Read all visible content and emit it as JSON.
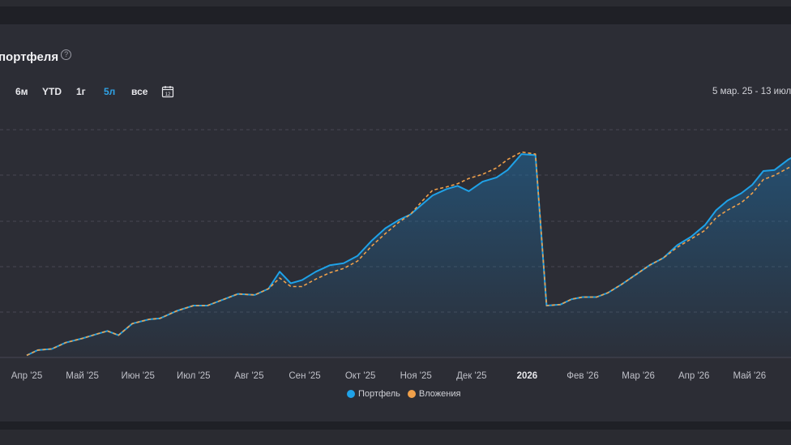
{
  "header": {
    "title": "портфеля",
    "help_icon": "question-circle-icon"
  },
  "periods": [
    {
      "label": "6м",
      "active": false
    },
    {
      "label": "YTD",
      "active": false
    },
    {
      "label": "1г",
      "active": false
    },
    {
      "label": "5л",
      "active": true
    },
    {
      "label": "все",
      "active": false
    }
  ],
  "calendar": {
    "icon": "calendar-icon",
    "day": "12"
  },
  "date_range": "5 мар. 25 - 13 июл",
  "chart_data": {
    "type": "area",
    "x_labels": [
      "Апр '25",
      "Май '25",
      "Июн '25",
      "Июл '25",
      "Авг '25",
      "Сен '25",
      "Окт '25",
      "Ноя '25",
      "Дек '25",
      "2026",
      "Фев '26",
      "Мар '26",
      "Апр '26",
      "Май '26"
    ],
    "bold_labels": [
      "2026"
    ],
    "x_domain": [
      2.3,
      16.65
    ],
    "y_domain": [
      0,
      10.6
    ],
    "grid": true,
    "legend_position": "bottom-center",
    "series": [
      {
        "name": "Портфель",
        "color": "#1fa2e8",
        "style": "solid-area",
        "points": [
          [
            2.3,
            0.1
          ],
          [
            2.5,
            0.35
          ],
          [
            2.75,
            0.4
          ],
          [
            3.0,
            0.7
          ],
          [
            3.3,
            0.9
          ],
          [
            3.55,
            1.1
          ],
          [
            3.75,
            1.25
          ],
          [
            3.95,
            1.05
          ],
          [
            4.2,
            1.6
          ],
          [
            4.5,
            1.8
          ],
          [
            4.7,
            1.85
          ],
          [
            5.0,
            2.2
          ],
          [
            5.3,
            2.45
          ],
          [
            5.55,
            2.45
          ],
          [
            5.8,
            2.7
          ],
          [
            6.1,
            3.0
          ],
          [
            6.4,
            2.95
          ],
          [
            6.65,
            3.25
          ],
          [
            6.85,
            4.05
          ],
          [
            7.05,
            3.5
          ],
          [
            7.25,
            3.65
          ],
          [
            7.5,
            4.05
          ],
          [
            7.75,
            4.35
          ],
          [
            8.0,
            4.45
          ],
          [
            8.25,
            4.8
          ],
          [
            8.5,
            5.5
          ],
          [
            8.75,
            6.1
          ],
          [
            9.0,
            6.5
          ],
          [
            9.2,
            6.75
          ],
          [
            9.4,
            7.2
          ],
          [
            9.6,
            7.65
          ],
          [
            9.85,
            7.95
          ],
          [
            10.05,
            8.1
          ],
          [
            10.25,
            7.85
          ],
          [
            10.5,
            8.3
          ],
          [
            10.75,
            8.5
          ],
          [
            10.95,
            8.85
          ],
          [
            11.2,
            9.6
          ],
          [
            11.45,
            9.55
          ],
          [
            11.65,
            2.45
          ],
          [
            11.9,
            2.5
          ],
          [
            12.1,
            2.75
          ],
          [
            12.3,
            2.85
          ],
          [
            12.55,
            2.85
          ],
          [
            12.75,
            3.05
          ],
          [
            13.0,
            3.45
          ],
          [
            13.25,
            3.9
          ],
          [
            13.5,
            4.35
          ],
          [
            13.75,
            4.7
          ],
          [
            14.0,
            5.3
          ],
          [
            14.25,
            5.7
          ],
          [
            14.5,
            6.25
          ],
          [
            14.7,
            6.95
          ],
          [
            14.9,
            7.4
          ],
          [
            15.15,
            7.75
          ],
          [
            15.35,
            8.15
          ],
          [
            15.55,
            8.8
          ],
          [
            15.75,
            8.85
          ],
          [
            16.0,
            9.35
          ],
          [
            16.25,
            9.7
          ],
          [
            16.5,
            9.95
          ],
          [
            16.65,
            10.1
          ],
          [
            16.8,
            10.45
          ],
          [
            17.0,
            10.55
          ]
        ]
      },
      {
        "name": "Вложения",
        "color": "#f0a04a",
        "style": "dashed",
        "points": [
          [
            2.3,
            0.1
          ],
          [
            2.5,
            0.35
          ],
          [
            2.75,
            0.4
          ],
          [
            3.0,
            0.7
          ],
          [
            3.3,
            0.9
          ],
          [
            3.55,
            1.1
          ],
          [
            3.75,
            1.25
          ],
          [
            3.95,
            1.05
          ],
          [
            4.2,
            1.6
          ],
          [
            4.5,
            1.8
          ],
          [
            4.7,
            1.85
          ],
          [
            5.0,
            2.2
          ],
          [
            5.3,
            2.45
          ],
          [
            5.55,
            2.45
          ],
          [
            5.8,
            2.7
          ],
          [
            6.1,
            3.0
          ],
          [
            6.4,
            2.95
          ],
          [
            6.65,
            3.25
          ],
          [
            6.85,
            3.75
          ],
          [
            7.05,
            3.35
          ],
          [
            7.25,
            3.35
          ],
          [
            7.5,
            3.7
          ],
          [
            7.75,
            4.0
          ],
          [
            8.0,
            4.2
          ],
          [
            8.25,
            4.55
          ],
          [
            8.5,
            5.25
          ],
          [
            8.75,
            5.85
          ],
          [
            9.0,
            6.4
          ],
          [
            9.2,
            6.75
          ],
          [
            9.4,
            7.35
          ],
          [
            9.6,
            7.9
          ],
          [
            9.85,
            8.05
          ],
          [
            10.05,
            8.2
          ],
          [
            10.25,
            8.45
          ],
          [
            10.5,
            8.65
          ],
          [
            10.75,
            8.95
          ],
          [
            10.95,
            9.35
          ],
          [
            11.2,
            9.7
          ],
          [
            11.45,
            9.6
          ],
          [
            11.65,
            2.45
          ],
          [
            11.9,
            2.5
          ],
          [
            12.1,
            2.75
          ],
          [
            12.3,
            2.85
          ],
          [
            12.55,
            2.85
          ],
          [
            12.75,
            3.05
          ],
          [
            13.0,
            3.45
          ],
          [
            13.25,
            3.9
          ],
          [
            13.5,
            4.35
          ],
          [
            13.75,
            4.7
          ],
          [
            14.0,
            5.2
          ],
          [
            14.25,
            5.6
          ],
          [
            14.5,
            6.0
          ],
          [
            14.7,
            6.6
          ],
          [
            14.9,
            6.95
          ],
          [
            15.15,
            7.3
          ],
          [
            15.35,
            7.75
          ],
          [
            15.55,
            8.4
          ],
          [
            15.75,
            8.6
          ],
          [
            16.0,
            8.95
          ],
          [
            16.25,
            9.25
          ],
          [
            16.5,
            9.55
          ],
          [
            16.65,
            9.75
          ],
          [
            16.8,
            10.05
          ],
          [
            17.0,
            10.15
          ]
        ]
      }
    ]
  }
}
